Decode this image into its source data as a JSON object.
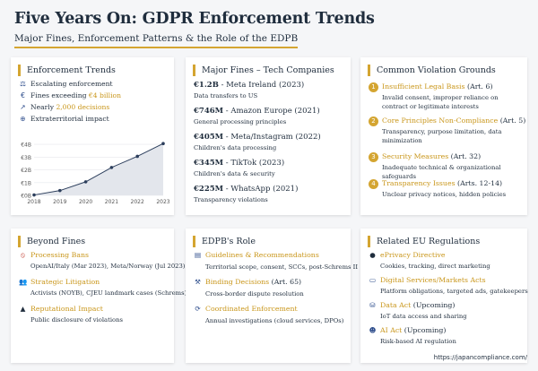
{
  "title": "Five Years On: GDPR Enforcement Trends",
  "subtitle": "Major Fines, Enforcement Patterns & the Role of the EDPB",
  "trends": {
    "heading": "Enforcement Trends",
    "items": [
      {
        "icon": "escalating-icon",
        "pre": "Escalating enforcement",
        "hl": "",
        "post": ""
      },
      {
        "icon": "euro-icon",
        "pre": "Fines exceeding ",
        "hl": "€4 billion",
        "post": ""
      },
      {
        "icon": "trend-up-icon",
        "pre": "Nearly ",
        "hl": "2,000 decisions",
        "post": ""
      },
      {
        "icon": "globe-icon",
        "pre": "Extraterritorial impact",
        "hl": "",
        "post": ""
      }
    ]
  },
  "chart_data": {
    "type": "line",
    "x": [
      "2018",
      "2019",
      "2020",
      "2021",
      "2022",
      "2023"
    ],
    "values": [
      0.05,
      0.6,
      1.7,
      3.5,
      4.9,
      6.5
    ],
    "ytick_labels": [
      "€0B",
      "€1B",
      "€2B",
      "€3B",
      "€4B"
    ],
    "ytick_values": [
      0,
      1.6,
      3.2,
      4.8,
      6.4
    ],
    "ylim": [
      0,
      7.2
    ],
    "grid": true,
    "line_color": "#2c3e5c",
    "fill_color": "#e3e6ec"
  },
  "fines": {
    "heading": "Major Fines – Tech Companies",
    "items": [
      {
        "amount": "€1.2B",
        "name": " - Meta Ireland (2023)",
        "desc": "Data transfers to US"
      },
      {
        "amount": "€746M",
        "name": " - Amazon Europe (2021)",
        "desc": "General processing principles"
      },
      {
        "amount": "€405M",
        "name": " - Meta/Instagram (2022)",
        "desc": "Children's data processing"
      },
      {
        "amount": "€345M",
        "name": " - TikTok (2023)",
        "desc": "Children's data & security"
      },
      {
        "amount": "€225M",
        "name": " - WhatsApp (2021)",
        "desc": "Transparency violations"
      }
    ]
  },
  "violations": {
    "heading": "Common Violation Grounds",
    "items": [
      {
        "num": "1",
        "head": "Insufficient Legal Basis",
        "art": " (Art. 6)",
        "desc": "Invalid consent, improper reliance on contract or legitimate interests"
      },
      {
        "num": "2",
        "head": "Core Principles Non-Compliance",
        "art": " (Art. 5)",
        "desc": "Transparency, purpose limitation, data minimization"
      },
      {
        "num": "3",
        "head": "Security Measures",
        "art": " (Art. 32)",
        "desc": "Inadequate technical & organizational safeguards"
      },
      {
        "num": "4",
        "head": "Transparency Issues",
        "art": " (Arts. 12-14)",
        "desc": "Unclear privacy notices, hidden policies"
      }
    ]
  },
  "beyond": {
    "heading": "Beyond Fines",
    "items": [
      {
        "icon": "ban-icon",
        "head": "Processing Bans",
        "desc": "OpenAI/Italy (Mar 2023), Meta/Norway (Jul 2023)"
      },
      {
        "icon": "people-icon",
        "head": "Strategic Litigation",
        "desc": "Activists (NOYB), CJEU landmark cases (Schrems)"
      },
      {
        "icon": "warning-icon",
        "head": "Reputational Impact",
        "desc": "Public disclosure of violations"
      }
    ]
  },
  "edpb": {
    "heading": "EDPB's Role",
    "items": [
      {
        "icon": "book-icon",
        "head": "Guidelines & Recommendations",
        "art": "",
        "desc": "Territorial scope, consent, SCCs, post-Schrems II"
      },
      {
        "icon": "gavel-icon",
        "head": "Binding Decisions",
        "art": " (Art. 65)",
        "desc": "Cross-border dispute resolution"
      },
      {
        "icon": "sync-icon",
        "head": "Coordinated Enforcement",
        "art": "",
        "desc": "Annual investigations (cloud services, DPOs)"
      }
    ]
  },
  "related": {
    "heading": "Related EU Regulations",
    "items": [
      {
        "icon": "cookie-icon",
        "head": "ePrivacy Directive",
        "art": "",
        "desc": "Cookies, tracking, direct marketing"
      },
      {
        "icon": "laptop-icon",
        "head": "Digital Services/Markets Acts",
        "art": "",
        "desc": "Platform obligations, targeted ads, gatekeepers"
      },
      {
        "icon": "database-icon",
        "head": "Data Act",
        "art": " (Upcoming)",
        "desc": "IoT data access and sharing"
      },
      {
        "icon": "robot-icon",
        "head": "AI Act",
        "art": " (Upcoming)",
        "desc": "Risk-based AI regulation"
      }
    ]
  },
  "footer": "https://japancompliance.com/"
}
